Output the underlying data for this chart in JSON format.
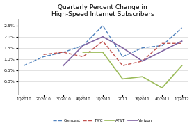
{
  "title": "Quarterly Percent Change in\nHigh-Speed Internet Subscribers",
  "x_labels": [
    "1Q2010",
    "2Q2010",
    "3Q2010",
    "4Q2010",
    "1Q2011",
    "2011",
    "3Q2011",
    "4Q2011",
    "1Q2012"
  ],
  "comcast": [
    0.007,
    0.011,
    0.013,
    0.016,
    0.025,
    0.011,
    0.015,
    0.016,
    0.024
  ],
  "twc": [
    null,
    0.012,
    0.013,
    0.011,
    0.018,
    0.007,
    0.009,
    0.017,
    0.017
  ],
  "att": [
    null,
    null,
    null,
    0.013,
    0.013,
    0.001,
    0.002,
    -0.003,
    0.007
  ],
  "verizon": [
    null,
    null,
    0.007,
    0.016,
    0.02,
    0.015,
    0.009,
    null,
    0.018
  ],
  "comcast_color": "#4F81BD",
  "twc_color": "#C0504D",
  "att_color": "#9BBB59",
  "verizon_color": "#8064A2",
  "ylim_min": -0.005,
  "ylim_max": 0.028,
  "yticks": [
    0.0,
    0.005,
    0.01,
    0.015,
    0.02,
    0.025
  ],
  "bg_color": "#FFFFFF"
}
